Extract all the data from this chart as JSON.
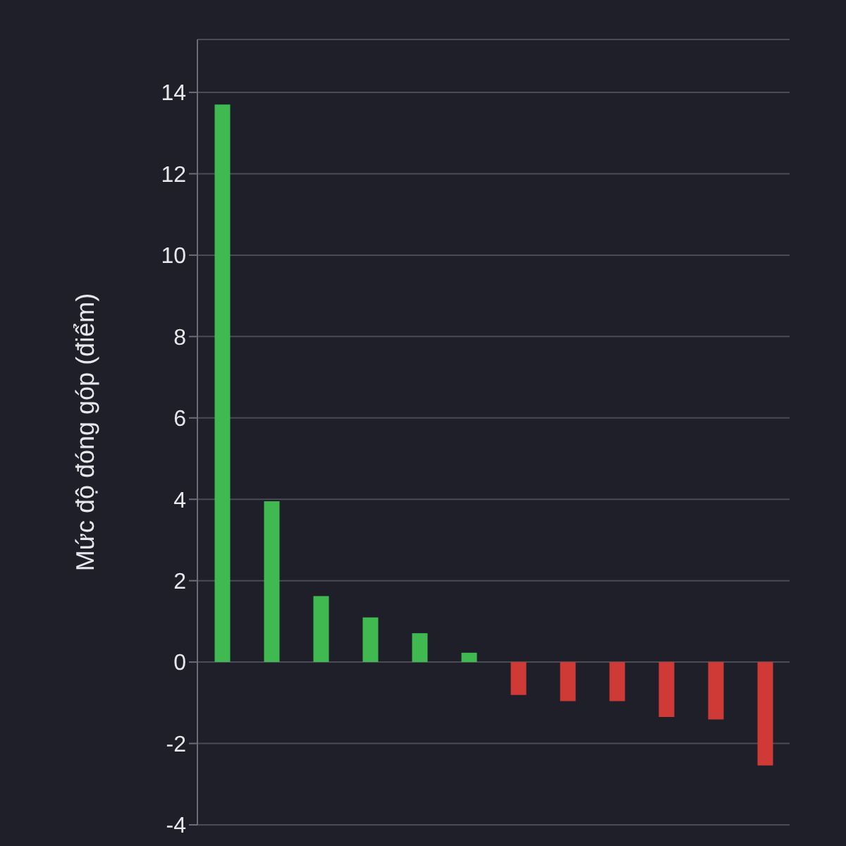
{
  "chart_data": {
    "type": "bar",
    "ylabel": "Mức độ đóng góp (điểm)",
    "categories": [
      null,
      null,
      null,
      null,
      null,
      null,
      null,
      null,
      null,
      null,
      null,
      null
    ],
    "values": [
      13.7,
      3.95,
      1.62,
      1.1,
      0.71,
      0.23,
      -0.81,
      -0.96,
      -0.96,
      -1.35,
      -1.41,
      -2.54
    ],
    "colors": [
      "#3fb950",
      "#3fb950",
      "#3fb950",
      "#3fb950",
      "#3fb950",
      "#3fb950",
      "#cf3a36",
      "#cf3a36",
      "#cf3a36",
      "#cf3a36",
      "#cf3a36",
      "#cf3a36"
    ],
    "ylim": [
      -4,
      15.3
    ],
    "yticks": [
      -4,
      -2,
      0,
      2,
      4,
      6,
      8,
      10,
      12,
      14
    ],
    "grid": "y",
    "tick_labels": "y",
    "legend": false
  }
}
